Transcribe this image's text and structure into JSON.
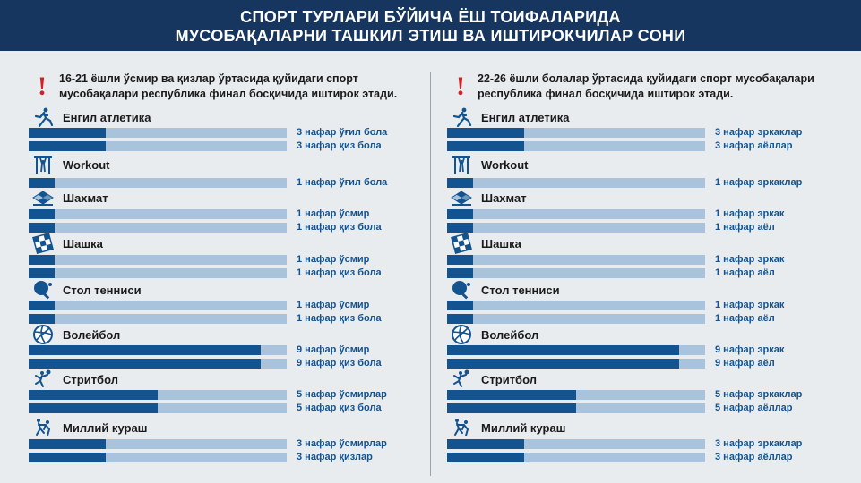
{
  "title_line1": "СПОРТ ТУРЛАРИ БЎЙИЧА ЁШ ТОИФАЛАРИДА",
  "title_line2": "МУСОБАҚАЛАРНИ ТАШКИЛ ЭТИШ ВА ИШТИРОКЧИЛАР СОНИ",
  "exclamation": "!",
  "colors": {
    "header": "#16355f",
    "bar_fill": "#13538f",
    "bar_track": "#a9c3dd",
    "accent_red": "#d32027"
  },
  "bar_scale_max": 10,
  "left": {
    "intro": "16-21 ёшли ўсмир ва қизлар ўртасида қуйидаги спорт мусобақалари республика финал босқичида иштирок этади.",
    "sports": [
      {
        "name": "Енгил атлетика",
        "icon": "athletics-icon",
        "rows": [
          {
            "value": 3,
            "label": "3 нафар ўғил бола"
          },
          {
            "value": 3,
            "label": "3 нафар қиз бола"
          }
        ]
      },
      {
        "name": "Workout",
        "icon": "workout-icon",
        "rows": [
          {
            "value": 1,
            "label": "1 нафар ўғил бола"
          }
        ]
      },
      {
        "name": "Шахмат",
        "icon": "chess-board-icon",
        "rows": [
          {
            "value": 1,
            "label": "1 нафар ўсмир"
          },
          {
            "value": 1,
            "label": "1 нафар қиз бола"
          }
        ]
      },
      {
        "name": "Шашка",
        "icon": "checkers-icon",
        "rows": [
          {
            "value": 1,
            "label": "1 нафар ўсмир"
          },
          {
            "value": 1,
            "label": "1 нафар қиз бола"
          }
        ]
      },
      {
        "name": "Стол тенниси",
        "icon": "table-tennis-icon",
        "rows": [
          {
            "value": 1,
            "label": "1 нафар ўсмир"
          },
          {
            "value": 1,
            "label": "1 нафар қиз бола"
          }
        ]
      },
      {
        "name": "Волейбол",
        "icon": "volleyball-icon",
        "rows": [
          {
            "value": 9,
            "label": "9 нафар ўсмир"
          },
          {
            "value": 9,
            "label": "9 нафар қиз бола"
          }
        ]
      },
      {
        "name": "Стритбол",
        "icon": "streetball-icon",
        "rows": [
          {
            "value": 5,
            "label": "5 нафар ўсмирлар"
          },
          {
            "value": 5,
            "label": "5 нафар қиз бола"
          }
        ]
      },
      {
        "name": "Миллий кураш",
        "icon": "wrestling-icon",
        "rows": [
          {
            "value": 3,
            "label": "3 нафар ўсмирлар"
          },
          {
            "value": 3,
            "label": "3 нафар қизлар"
          }
        ]
      }
    ]
  },
  "right": {
    "intro": "22-26 ёшли болалар ўртасида қуйидаги спорт мусобақалари республика финал босқичида иштирок этади.",
    "sports": [
      {
        "name": "Енгил атлетика",
        "icon": "athletics-icon",
        "rows": [
          {
            "value": 3,
            "label": "3 нафар эркаклар"
          },
          {
            "value": 3,
            "label": "3 нафар аёллар"
          }
        ]
      },
      {
        "name": "Workout",
        "icon": "workout-icon",
        "rows": [
          {
            "value": 1,
            "label": "1 нафар эркаклар"
          }
        ]
      },
      {
        "name": "Шахмат",
        "icon": "chess-board-icon",
        "rows": [
          {
            "value": 1,
            "label": "1 нафар эркак"
          },
          {
            "value": 1,
            "label": "1 нафар аёл"
          }
        ]
      },
      {
        "name": "Шашка",
        "icon": "checkers-icon",
        "rows": [
          {
            "value": 1,
            "label": "1 нафар эркак"
          },
          {
            "value": 1,
            "label": "1 нафар аёл"
          }
        ]
      },
      {
        "name": "Стол тенниси",
        "icon": "table-tennis-icon",
        "rows": [
          {
            "value": 1,
            "label": "1 нафар эркак"
          },
          {
            "value": 1,
            "label": "1 нафар аёл"
          }
        ]
      },
      {
        "name": "Волейбол",
        "icon": "volleyball-icon",
        "rows": [
          {
            "value": 9,
            "label": "9 нафар эркак"
          },
          {
            "value": 9,
            "label": "9 нафар аёл"
          }
        ]
      },
      {
        "name": "Стритбол",
        "icon": "streetball-icon",
        "rows": [
          {
            "value": 5,
            "label": "5 нафар эркаклар"
          },
          {
            "value": 5,
            "label": "5 нафар аёллар"
          }
        ]
      },
      {
        "name": "Миллий кураш",
        "icon": "wrestling-icon",
        "rows": [
          {
            "value": 3,
            "label": "3 нафар эркаклар"
          },
          {
            "value": 3,
            "label": "3 нафар аёллар"
          }
        ]
      }
    ]
  }
}
